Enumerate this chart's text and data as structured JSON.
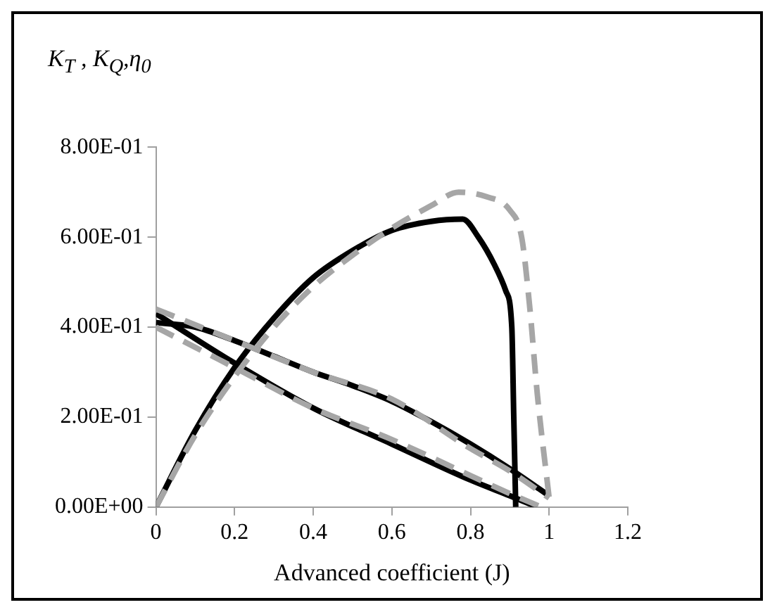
{
  "chart_data": {
    "type": "line",
    "ylabel": "K$_{T}$ , K$_{Q}$,η$_{0}$",
    "xlabel": "Advanced coefficient (J)",
    "xlim": [
      0,
      1.2
    ],
    "xticks": [
      0,
      0.2,
      0.4,
      0.6,
      0.8,
      1,
      1.2
    ],
    "ylim": [
      0,
      0.8
    ],
    "yticks": [
      {
        "value": 0,
        "label": "0.00E+00"
      },
      {
        "value": 0.2,
        "label": "2.00E-01"
      },
      {
        "value": 0.4,
        "label": "4.00E-01"
      },
      {
        "value": 0.6,
        "label": "6.00E-01"
      },
      {
        "value": 0.8,
        "label": "8.00E-01"
      }
    ],
    "grid": false,
    "legend": false,
    "marker": "none",
    "series": [
      {
        "color": "#a6a6a6",
        "line_style": "dashed",
        "x": [
          0,
          0.1,
          0.2,
          0.3,
          0.4,
          0.5,
          0.6,
          0.7,
          0.77,
          0.84,
          0.9,
          0.93,
          0.95,
          0.97,
          1.0
        ],
        "values": [
          0,
          0.16,
          0.29,
          0.4,
          0.49,
          0.56,
          0.62,
          0.67,
          0.7,
          0.69,
          0.66,
          0.6,
          0.45,
          0.25,
          0.02
        ]
      },
      {
        "color": "#a6a6a6",
        "line_style": "dashed",
        "x": [
          0,
          0.2,
          0.4,
          0.6,
          0.8,
          0.9,
          1.0
        ],
        "values": [
          0.44,
          0.37,
          0.3,
          0.24,
          0.13,
          0.08,
          0.02
        ]
      },
      {
        "color": "#a6a6a6",
        "line_style": "dashed",
        "x": [
          0,
          0.2,
          0.4,
          0.6,
          0.8,
          0.9,
          0.98
        ],
        "values": [
          0.4,
          0.31,
          0.22,
          0.15,
          0.07,
          0.03,
          0
        ]
      },
      {
        "color": "#000000",
        "line_style": "solid",
        "x": [
          0,
          0.1,
          0.2,
          0.3,
          0.4,
          0.5,
          0.6,
          0.7,
          0.78,
          0.82,
          0.86,
          0.89,
          0.905,
          0.91,
          0.915
        ],
        "values": [
          0,
          0.17,
          0.31,
          0.42,
          0.51,
          0.57,
          0.615,
          0.635,
          0.64,
          0.6,
          0.54,
          0.48,
          0.4,
          0.2,
          0
        ]
      },
      {
        "color": "#000000",
        "line_style": "solid",
        "x": [
          0,
          0.1,
          0.2,
          0.3,
          0.4,
          0.5,
          0.6,
          0.7,
          0.8,
          0.9,
          1.0
        ],
        "values": [
          0.41,
          0.4,
          0.37,
          0.335,
          0.3,
          0.27,
          0.235,
          0.19,
          0.14,
          0.085,
          0.025
        ]
      },
      {
        "color": "#000000",
        "line_style": "solid",
        "x": [
          0,
          0.2,
          0.4,
          0.6,
          0.8,
          0.9,
          0.97
        ],
        "values": [
          0.43,
          0.32,
          0.22,
          0.14,
          0.06,
          0.025,
          0
        ]
      }
    ]
  }
}
